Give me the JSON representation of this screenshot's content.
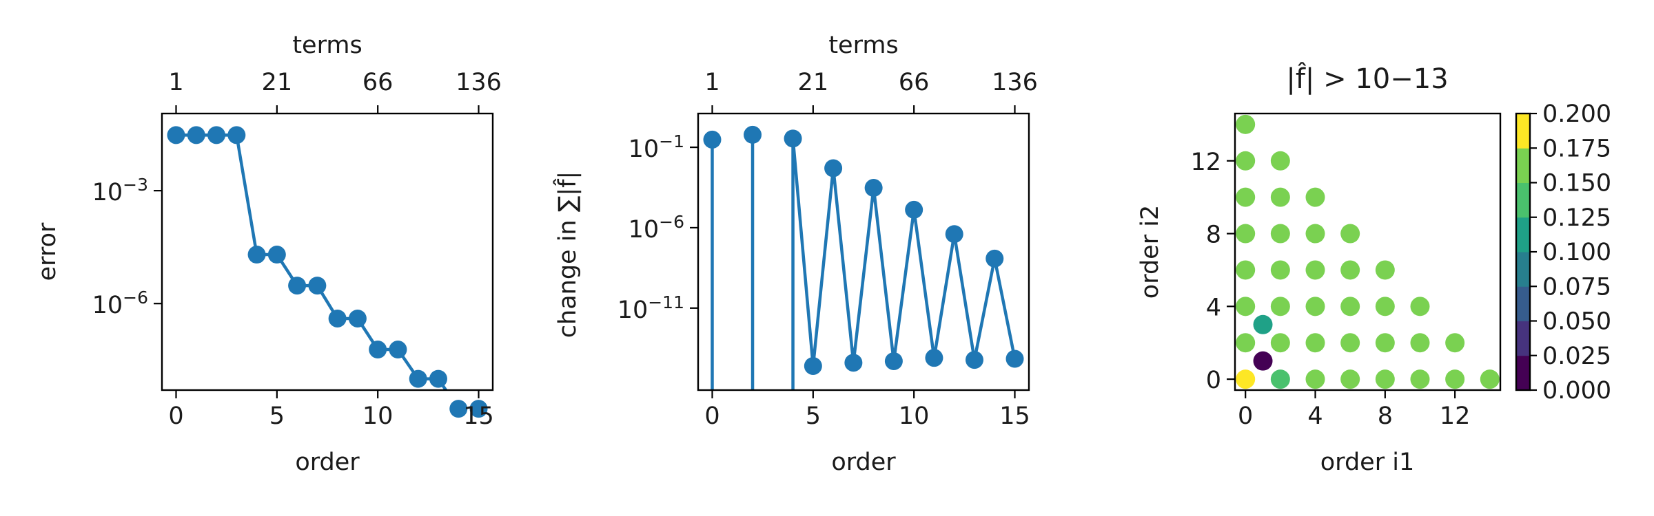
{
  "chart_data": [
    {
      "type": "line",
      "xlabel": "order",
      "ylabel": "error",
      "top_xlabel": "terms",
      "yscale": "log",
      "xlim": [
        -0.7,
        15.7
      ],
      "ylim_log10": [
        -8.3,
        -0.95
      ],
      "x_ticks": [
        0,
        5,
        10,
        15
      ],
      "y_ticks": [
        {
          "value": 0.001,
          "label": "10−3"
        },
        {
          "value": 1e-06,
          "label": "10−6"
        }
      ],
      "top_ticks": [
        {
          "order": 0,
          "label": "1"
        },
        {
          "order": 5,
          "label": "21"
        },
        {
          "order": 10,
          "label": "66"
        },
        {
          "order": 15,
          "label": "136"
        }
      ],
      "x": [
        0,
        1,
        2,
        3,
        4,
        5,
        6,
        7,
        8,
        9,
        10,
        11,
        12,
        13,
        14,
        15
      ],
      "values": [
        0.03,
        0.03,
        0.03,
        0.03,
        2e-05,
        2e-05,
        3e-06,
        3e-06,
        4e-07,
        4e-07,
        6e-08,
        6e-08,
        1e-08,
        1e-08,
        1.6e-09,
        1.6e-09
      ]
    },
    {
      "type": "line",
      "xlabel": "order",
      "ylabel": "change in ∑|f̂|",
      "top_xlabel": "terms",
      "yscale": "log",
      "xlim": [
        -0.7,
        15.7
      ],
      "ylim_log10": [
        -16.1,
        1.1
      ],
      "x_ticks": [
        0,
        5,
        10,
        15
      ],
      "y_ticks": [
        {
          "value": 0.1,
          "label": "10−1"
        },
        {
          "value": 1e-06,
          "label": "10−6"
        },
        {
          "value": 1e-11,
          "label": "10−11"
        }
      ],
      "top_ticks": [
        {
          "order": 0,
          "label": "1"
        },
        {
          "order": 5,
          "label": "21"
        },
        {
          "order": 10,
          "label": "66"
        },
        {
          "order": 15,
          "label": "136"
        }
      ],
      "x": [
        0,
        2,
        4,
        5,
        6,
        7,
        8,
        9,
        10,
        11,
        12,
        13,
        14,
        15
      ],
      "values": [
        0.3,
        0.6,
        0.35,
        2.5e-15,
        0.005,
        4e-15,
        0.0003,
        5e-15,
        1.3e-05,
        8e-15,
        4e-07,
        6e-15,
        1.2e-08,
        7e-15
      ]
    },
    {
      "type": "scatter",
      "title": "|f̂| > 10−13",
      "xlabel": "order i1",
      "ylabel": "order i2",
      "xlim": [
        -0.6,
        14.6
      ],
      "ylim": [
        -0.6,
        14.6
      ],
      "x_ticks": [
        0,
        4,
        8,
        12
      ],
      "y_ticks": [
        0,
        4,
        8,
        12
      ],
      "colorbar": {
        "ticks": [
          "0.000",
          "0.025",
          "0.050",
          "0.075",
          "0.100",
          "0.125",
          "0.150",
          "0.175",
          "0.200"
        ],
        "colors": [
          "#440154",
          "#46337e",
          "#365c8d",
          "#277f8e",
          "#1fa187",
          "#4ac16d",
          "#7ad151",
          "#a0da39",
          "#fde725"
        ]
      },
      "points": [
        {
          "i1": 0,
          "i2": 0,
          "value": 0.2
        },
        {
          "i1": 1,
          "i2": 1,
          "value": 0.005
        },
        {
          "i1": 1,
          "i2": 3,
          "value": 0.11
        },
        {
          "i1": 2,
          "i2": 0,
          "value": 0.14
        },
        {
          "i1": 0,
          "i2": 2,
          "value": 0.16
        },
        {
          "i1": 0,
          "i2": 4,
          "value": 0.16
        },
        {
          "i1": 0,
          "i2": 6,
          "value": 0.16
        },
        {
          "i1": 0,
          "i2": 8,
          "value": 0.16
        },
        {
          "i1": 0,
          "i2": 10,
          "value": 0.16
        },
        {
          "i1": 0,
          "i2": 12,
          "value": 0.16
        },
        {
          "i1": 0,
          "i2": 14,
          "value": 0.16
        },
        {
          "i1": 2,
          "i2": 2,
          "value": 0.16
        },
        {
          "i1": 2,
          "i2": 4,
          "value": 0.16
        },
        {
          "i1": 2,
          "i2": 6,
          "value": 0.16
        },
        {
          "i1": 2,
          "i2": 8,
          "value": 0.16
        },
        {
          "i1": 2,
          "i2": 10,
          "value": 0.16
        },
        {
          "i1": 2,
          "i2": 12,
          "value": 0.16
        },
        {
          "i1": 4,
          "i2": 0,
          "value": 0.16
        },
        {
          "i1": 4,
          "i2": 2,
          "value": 0.16
        },
        {
          "i1": 4,
          "i2": 4,
          "value": 0.16
        },
        {
          "i1": 4,
          "i2": 6,
          "value": 0.16
        },
        {
          "i1": 4,
          "i2": 8,
          "value": 0.16
        },
        {
          "i1": 4,
          "i2": 10,
          "value": 0.16
        },
        {
          "i1": 6,
          "i2": 0,
          "value": 0.16
        },
        {
          "i1": 6,
          "i2": 2,
          "value": 0.16
        },
        {
          "i1": 6,
          "i2": 4,
          "value": 0.16
        },
        {
          "i1": 6,
          "i2": 6,
          "value": 0.16
        },
        {
          "i1": 6,
          "i2": 8,
          "value": 0.16
        },
        {
          "i1": 8,
          "i2": 0,
          "value": 0.16
        },
        {
          "i1": 8,
          "i2": 2,
          "value": 0.16
        },
        {
          "i1": 8,
          "i2": 4,
          "value": 0.16
        },
        {
          "i1": 8,
          "i2": 6,
          "value": 0.16
        },
        {
          "i1": 10,
          "i2": 0,
          "value": 0.16
        },
        {
          "i1": 10,
          "i2": 2,
          "value": 0.16
        },
        {
          "i1": 10,
          "i2": 4,
          "value": 0.16
        },
        {
          "i1": 12,
          "i2": 0,
          "value": 0.16
        },
        {
          "i1": 12,
          "i2": 2,
          "value": 0.16
        },
        {
          "i1": 14,
          "i2": 0,
          "value": 0.16
        }
      ]
    }
  ]
}
